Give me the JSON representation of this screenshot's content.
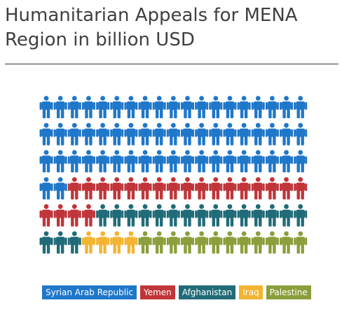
{
  "title": "Humanitarian Appeals for MENA Region in billion USD",
  "chart_data": {
    "type": "pictogram",
    "title": "Humanitarian Appeals for MENA Region in billion USD",
    "icon": "person-icon",
    "columns": 19,
    "rows": 6,
    "categories": [
      "Syrian Arab Republic",
      "Yemen",
      "Afghanistan",
      "Iraq",
      "Palestine"
    ],
    "values": [
      59,
      21,
      18,
      4,
      12
    ],
    "colors": [
      "#1f77c9",
      "#c0353a",
      "#216b78",
      "#f2b431",
      "#8a9e3b"
    ],
    "legend": "bottom"
  }
}
